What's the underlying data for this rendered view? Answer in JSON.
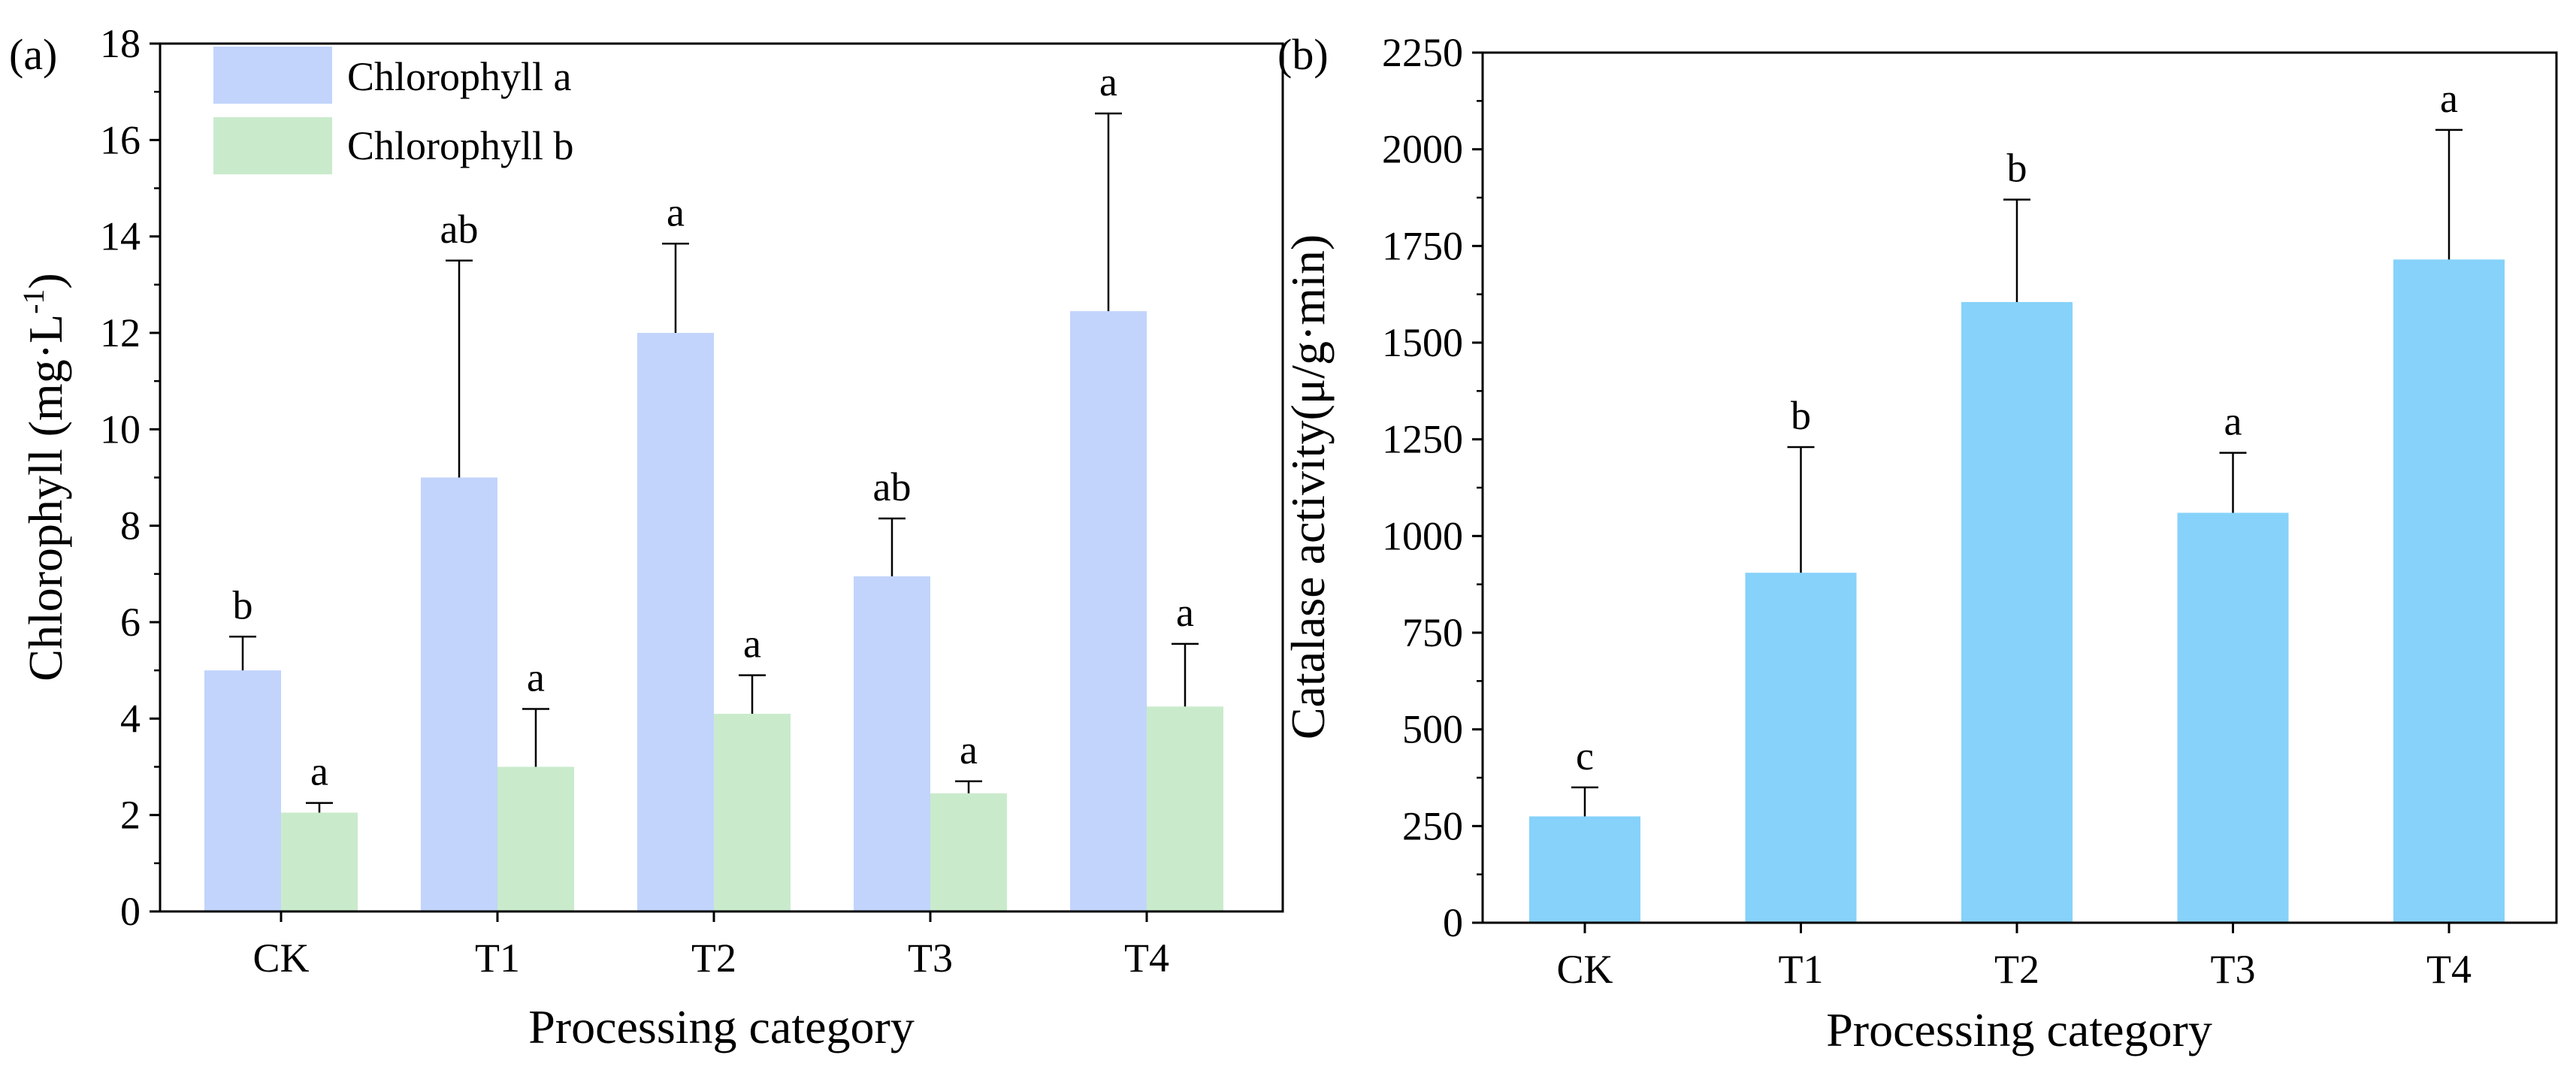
{
  "colors": {
    "chlorophyll_a": "#c2d4fb",
    "chlorophyll_b": "#c9ebcc",
    "catalase": "#86d2fa",
    "axis": "#000000"
  },
  "chart_data": [
    {
      "panel": "(a)",
      "type": "bar",
      "title": "",
      "xlabel": "Processing category",
      "ylabel": "Chlorophyll (mg·L",
      "ylabel_superscript": "-1",
      "ylabel_close": ")",
      "ylim": [
        0,
        18
      ],
      "yticks": [
        "0",
        "2",
        "4",
        "6",
        "8",
        "10",
        "12",
        "14",
        "16",
        "18"
      ],
      "legend_position": "top-left",
      "categories": [
        "CK",
        "T1",
        "T2",
        "T3",
        "T4"
      ],
      "series": [
        {
          "name": "Chlorophyll a",
          "color_key": "chlorophyll_a",
          "values": [
            5.0,
            9.0,
            12.0,
            6.95,
            12.45
          ],
          "errors": [
            0.7,
            4.5,
            1.85,
            1.2,
            4.1
          ],
          "significance": [
            "b",
            "ab",
            "a",
            "ab",
            "a"
          ]
        },
        {
          "name": "Chlorophyll b",
          "color_key": "chlorophyll_b",
          "values": [
            2.05,
            3.0,
            4.1,
            2.45,
            4.25
          ],
          "errors": [
            0.2,
            1.2,
            0.8,
            0.25,
            1.3
          ],
          "significance": [
            "a",
            "a",
            "a",
            "a",
            "a"
          ]
        }
      ]
    },
    {
      "panel": "(b)",
      "type": "bar",
      "title": "",
      "xlabel": "Processing category",
      "ylabel": "Catalase activity(μ/g·min)",
      "ylim": [
        0,
        2250
      ],
      "yticks": [
        "0",
        "250",
        "500",
        "750",
        "1000",
        "1250",
        "1500",
        "1750",
        "2000",
        "2250"
      ],
      "categories": [
        "CK",
        "T1",
        "T2",
        "T3",
        "T4"
      ],
      "series": [
        {
          "name": "Catalase activity",
          "color_key": "catalase",
          "values": [
            275,
            905,
            1605,
            1060,
            1715
          ],
          "errors": [
            75,
            325,
            265,
            155,
            335
          ],
          "significance": [
            "c",
            "b",
            "b",
            "a",
            "a"
          ]
        }
      ]
    }
  ]
}
